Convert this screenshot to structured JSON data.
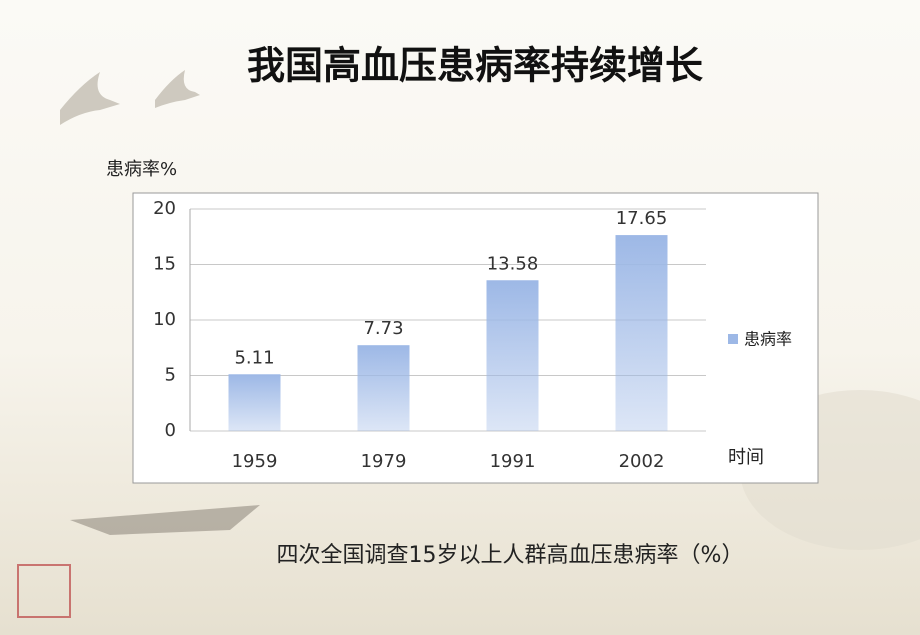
{
  "chart_data": {
    "type": "bar",
    "title": "我国高血压患病率持续增长",
    "y_label": "患病率%",
    "x_label": "时间",
    "caption": "四次全国调查15岁以上人群高血压患病率（%）",
    "categories": [
      "1959",
      "1979",
      "1991",
      "2002"
    ],
    "series": [
      {
        "name": "患病率",
        "color": "#9db8e6",
        "values": [
          5.11,
          7.73,
          13.58,
          17.65
        ]
      }
    ],
    "ylim": [
      0,
      20
    ],
    "yticks": [
      0,
      5,
      10,
      15,
      20
    ],
    "grid": true,
    "legend": "right"
  }
}
